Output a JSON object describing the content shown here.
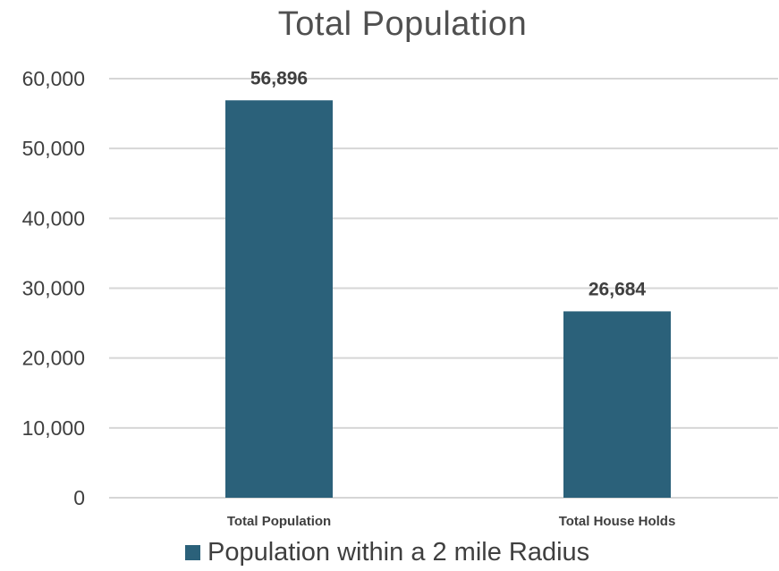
{
  "chart_data": {
    "type": "bar",
    "title": "Total Population",
    "categories": [
      "Total Population",
      "Total House Holds"
    ],
    "series": [
      {
        "name": "Population within a 2 mile Radius",
        "values": [
          56896,
          26684
        ],
        "color": "#2b617a"
      }
    ],
    "data_labels": [
      "56,896",
      "26,684"
    ],
    "y_ticks": [
      "0",
      "10,000",
      "20,000",
      "30,000",
      "40,000",
      "50,000",
      "60,000"
    ],
    "ylim": [
      0,
      60000
    ],
    "grid": true,
    "legend_position": "bottom"
  }
}
